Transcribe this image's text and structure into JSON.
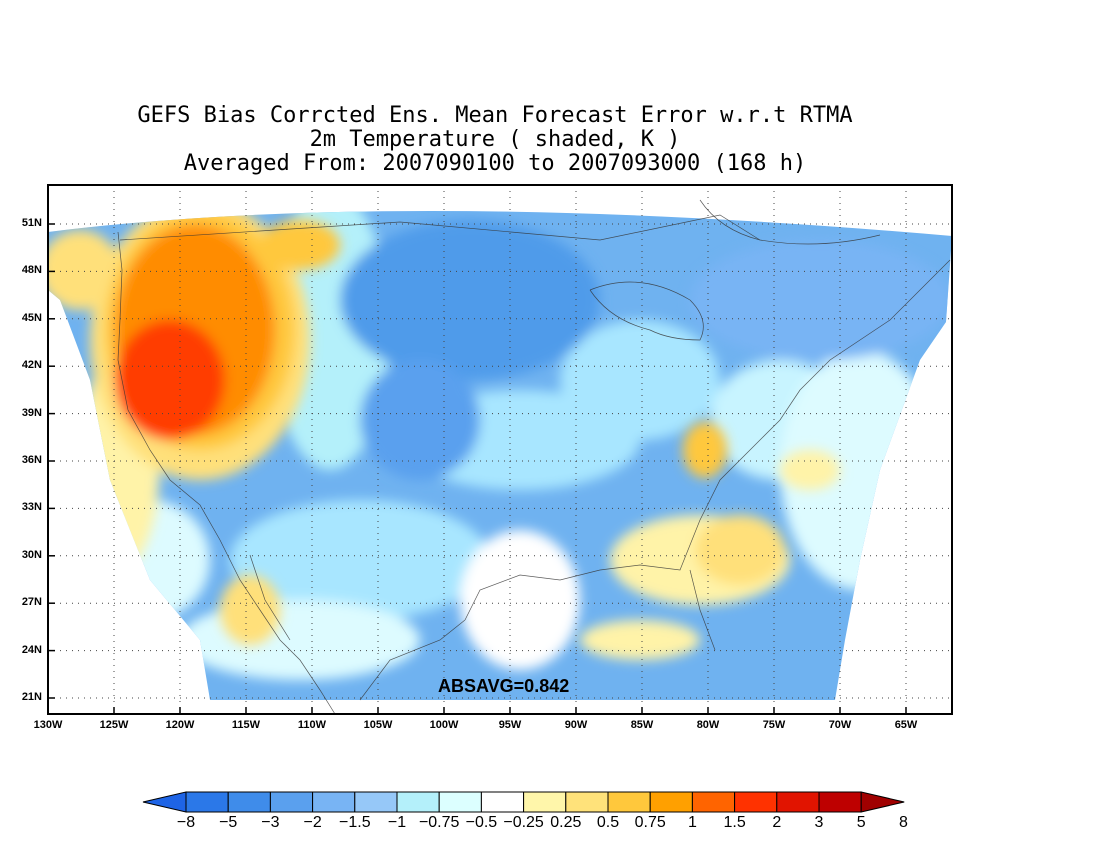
{
  "title": {
    "line1": "GEFS Bias Corrcted Ens. Mean Forecast Error w.r.t RTMA",
    "line2": "2m Temperature ( shaded, K )",
    "line3": "Averaged From: 2007090100 to 2007093000 (168 h)"
  },
  "map": {
    "lat_ticks": [
      "51N",
      "48N",
      "45N",
      "42N",
      "39N",
      "36N",
      "33N",
      "30N",
      "27N",
      "24N",
      "21N"
    ],
    "lon_ticks": [
      "130W",
      "125W",
      "120W",
      "115W",
      "110W",
      "105W",
      "100W",
      "95W",
      "90W",
      "85W",
      "80W",
      "75W",
      "70W",
      "65W"
    ],
    "absavg": "ABSAVG=0.842",
    "colors": {
      "strong_warm": "#ff3d00",
      "warm": "#ff8c00",
      "light_warm": "#ffe07a",
      "pale_warm": "#fff3a8",
      "neutral": "#ffffff",
      "pale_cool": "#ddfbff",
      "light_cool": "#a8e6ff",
      "cool": "#6fb2f0",
      "mid_cool": "#4f9bea"
    }
  },
  "colorbar": {
    "colors": [
      "#1e64e6",
      "#2b78e8",
      "#3f8cea",
      "#5aa0ee",
      "#78b4f4",
      "#96c8f8",
      "#b4f0fa",
      "#dcffff",
      "#ffffff",
      "#fff6aa",
      "#ffe27a",
      "#ffc83c",
      "#ffa000",
      "#ff6400",
      "#ff3200",
      "#e11400",
      "#be0000",
      "#a00000"
    ],
    "labels": [
      "−8",
      "−5",
      "−3",
      "−2",
      "−1.5",
      "−1",
      "−0.75",
      "−0.5",
      "−0.25",
      "0.25",
      "0.5",
      "0.75",
      "1",
      "1.5",
      "2",
      "3",
      "5",
      "8"
    ]
  }
}
